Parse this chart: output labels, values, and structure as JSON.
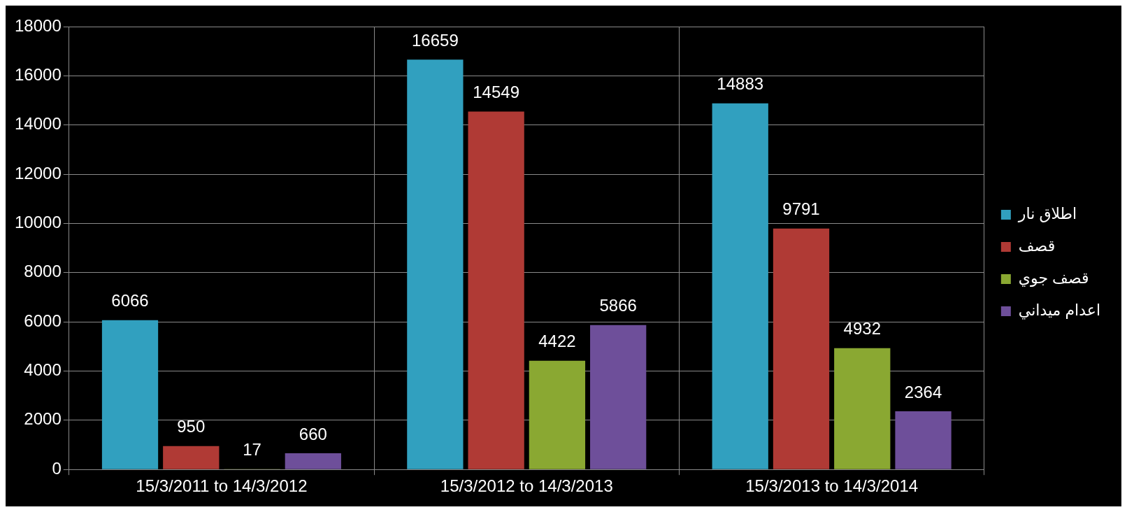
{
  "chart_data": {
    "type": "bar",
    "categories": [
      "15/3/2011 to 14/3/2012",
      "15/3/2012 to 14/3/2013",
      "15/3/2013 to 14/3/2014"
    ],
    "series": [
      {
        "name": "اطلاق نار",
        "color": "#31a0bf",
        "values": [
          6066,
          16659,
          14883
        ]
      },
      {
        "name": "قصف",
        "color": "#b03a35",
        "values": [
          950,
          14549,
          9791
        ]
      },
      {
        "name": "قصف جوي",
        "color": "#8aa832",
        "values": [
          17,
          4422,
          4932
        ]
      },
      {
        "name": "اعدام ميداني",
        "color": "#6e4f9a",
        "values": [
          660,
          5866,
          2364
        ]
      }
    ],
    "ylim": [
      0,
      18000
    ],
    "yticks": [
      0,
      2000,
      4000,
      6000,
      8000,
      10000,
      12000,
      14000,
      16000,
      18000
    ],
    "grid": true,
    "legend": "right",
    "data_labels": true
  }
}
